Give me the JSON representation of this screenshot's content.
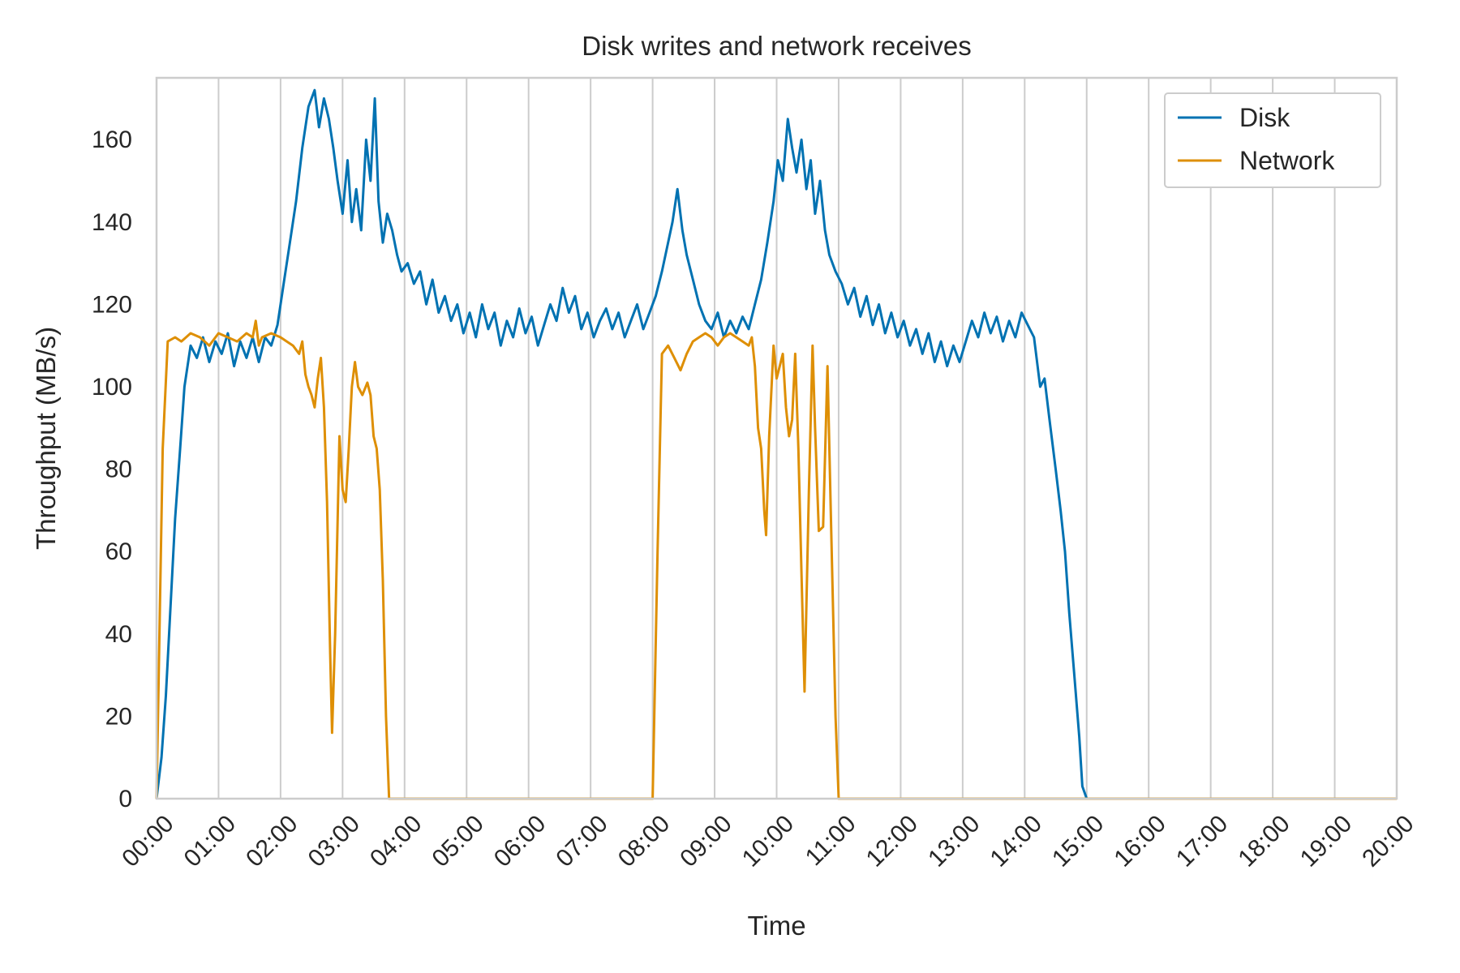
{
  "chart_data": {
    "type": "line",
    "title": "Disk writes and network receives",
    "xlabel": "Time",
    "ylabel": "Throughput (MB/s)",
    "xlim": [
      "00:00",
      "20:00"
    ],
    "ylim": [
      0,
      175
    ],
    "x_ticks": [
      "00:00",
      "01:00",
      "02:00",
      "03:00",
      "04:00",
      "05:00",
      "06:00",
      "07:00",
      "08:00",
      "09:00",
      "10:00",
      "11:00",
      "12:00",
      "13:00",
      "14:00",
      "15:00",
      "16:00",
      "17:00",
      "18:00",
      "19:00",
      "20:00"
    ],
    "y_ticks": [
      0,
      20,
      40,
      60,
      80,
      100,
      120,
      140,
      160
    ],
    "grid": "vertical",
    "legend": {
      "placement": "top-right"
    },
    "x_unit": "hours",
    "series": [
      {
        "name": "Disk",
        "color": "#0072B2",
        "points": [
          [
            0.0,
            0
          ],
          [
            0.08,
            10
          ],
          [
            0.15,
            25
          ],
          [
            0.22,
            45
          ],
          [
            0.3,
            68
          ],
          [
            0.38,
            85
          ],
          [
            0.45,
            100
          ],
          [
            0.55,
            110
          ],
          [
            0.65,
            107
          ],
          [
            0.75,
            112
          ],
          [
            0.85,
            106
          ],
          [
            0.95,
            111
          ],
          [
            1.05,
            108
          ],
          [
            1.15,
            113
          ],
          [
            1.25,
            105
          ],
          [
            1.35,
            111
          ],
          [
            1.45,
            107
          ],
          [
            1.55,
            112
          ],
          [
            1.65,
            106
          ],
          [
            1.75,
            112
          ],
          [
            1.85,
            110
          ],
          [
            1.95,
            115
          ],
          [
            2.05,
            125
          ],
          [
            2.15,
            135
          ],
          [
            2.25,
            145
          ],
          [
            2.35,
            158
          ],
          [
            2.45,
            168
          ],
          [
            2.55,
            172
          ],
          [
            2.62,
            163
          ],
          [
            2.7,
            170
          ],
          [
            2.78,
            165
          ],
          [
            2.85,
            158
          ],
          [
            2.92,
            150
          ],
          [
            3.0,
            142
          ],
          [
            3.08,
            155
          ],
          [
            3.15,
            140
          ],
          [
            3.22,
            148
          ],
          [
            3.3,
            138
          ],
          [
            3.38,
            160
          ],
          [
            3.45,
            150
          ],
          [
            3.52,
            170
          ],
          [
            3.58,
            145
          ],
          [
            3.65,
            135
          ],
          [
            3.72,
            142
          ],
          [
            3.8,
            138
          ],
          [
            3.88,
            132
          ],
          [
            3.95,
            128
          ],
          [
            4.05,
            130
          ],
          [
            4.15,
            125
          ],
          [
            4.25,
            128
          ],
          [
            4.35,
            120
          ],
          [
            4.45,
            126
          ],
          [
            4.55,
            118
          ],
          [
            4.65,
            122
          ],
          [
            4.75,
            116
          ],
          [
            4.85,
            120
          ],
          [
            4.95,
            113
          ],
          [
            5.05,
            118
          ],
          [
            5.15,
            112
          ],
          [
            5.25,
            120
          ],
          [
            5.35,
            114
          ],
          [
            5.45,
            118
          ],
          [
            5.55,
            110
          ],
          [
            5.65,
            116
          ],
          [
            5.75,
            112
          ],
          [
            5.85,
            119
          ],
          [
            5.95,
            113
          ],
          [
            6.05,
            117
          ],
          [
            6.15,
            110
          ],
          [
            6.25,
            115
          ],
          [
            6.35,
            120
          ],
          [
            6.45,
            116
          ],
          [
            6.55,
            124
          ],
          [
            6.65,
            118
          ],
          [
            6.75,
            122
          ],
          [
            6.85,
            114
          ],
          [
            6.95,
            118
          ],
          [
            7.05,
            112
          ],
          [
            7.15,
            116
          ],
          [
            7.25,
            119
          ],
          [
            7.35,
            114
          ],
          [
            7.45,
            118
          ],
          [
            7.55,
            112
          ],
          [
            7.65,
            116
          ],
          [
            7.75,
            120
          ],
          [
            7.85,
            114
          ],
          [
            7.95,
            118
          ],
          [
            8.05,
            122
          ],
          [
            8.15,
            128
          ],
          [
            8.25,
            135
          ],
          [
            8.32,
            140
          ],
          [
            8.4,
            148
          ],
          [
            8.48,
            138
          ],
          [
            8.55,
            132
          ],
          [
            8.65,
            126
          ],
          [
            8.75,
            120
          ],
          [
            8.85,
            116
          ],
          [
            8.95,
            114
          ],
          [
            9.05,
            118
          ],
          [
            9.15,
            112
          ],
          [
            9.25,
            116
          ],
          [
            9.35,
            113
          ],
          [
            9.45,
            117
          ],
          [
            9.55,
            114
          ],
          [
            9.65,
            120
          ],
          [
            9.75,
            126
          ],
          [
            9.85,
            135
          ],
          [
            9.95,
            145
          ],
          [
            10.02,
            155
          ],
          [
            10.1,
            150
          ],
          [
            10.18,
            165
          ],
          [
            10.25,
            158
          ],
          [
            10.32,
            152
          ],
          [
            10.4,
            160
          ],
          [
            10.48,
            148
          ],
          [
            10.55,
            155
          ],
          [
            10.62,
            142
          ],
          [
            10.7,
            150
          ],
          [
            10.78,
            138
          ],
          [
            10.85,
            132
          ],
          [
            10.95,
            128
          ],
          [
            11.05,
            125
          ],
          [
            11.15,
            120
          ],
          [
            11.25,
            124
          ],
          [
            11.35,
            117
          ],
          [
            11.45,
            122
          ],
          [
            11.55,
            115
          ],
          [
            11.65,
            120
          ],
          [
            11.75,
            113
          ],
          [
            11.85,
            118
          ],
          [
            11.95,
            112
          ],
          [
            12.05,
            116
          ],
          [
            12.15,
            110
          ],
          [
            12.25,
            114
          ],
          [
            12.35,
            108
          ],
          [
            12.45,
            113
          ],
          [
            12.55,
            106
          ],
          [
            12.65,
            111
          ],
          [
            12.75,
            105
          ],
          [
            12.85,
            110
          ],
          [
            12.95,
            106
          ],
          [
            13.05,
            111
          ],
          [
            13.15,
            116
          ],
          [
            13.25,
            112
          ],
          [
            13.35,
            118
          ],
          [
            13.45,
            113
          ],
          [
            13.55,
            117
          ],
          [
            13.65,
            111
          ],
          [
            13.75,
            116
          ],
          [
            13.85,
            112
          ],
          [
            13.95,
            118
          ],
          [
            14.05,
            115
          ],
          [
            14.15,
            112
          ],
          [
            14.25,
            100
          ],
          [
            14.32,
            102
          ],
          [
            14.4,
            92
          ],
          [
            14.5,
            80
          ],
          [
            14.58,
            70
          ],
          [
            14.65,
            60
          ],
          [
            14.72,
            45
          ],
          [
            14.8,
            30
          ],
          [
            14.88,
            15
          ],
          [
            14.93,
            3
          ],
          [
            15.0,
            0
          ],
          [
            20.0,
            0
          ]
        ]
      },
      {
        "name": "Network",
        "color": "#DE8F05",
        "points": [
          [
            0.0,
            0
          ],
          [
            0.1,
            85
          ],
          [
            0.18,
            111
          ],
          [
            0.3,
            112
          ],
          [
            0.4,
            111
          ],
          [
            0.55,
            113
          ],
          [
            0.7,
            112
          ],
          [
            0.85,
            110
          ],
          [
            1.0,
            113
          ],
          [
            1.15,
            112
          ],
          [
            1.3,
            111
          ],
          [
            1.45,
            113
          ],
          [
            1.55,
            112
          ],
          [
            1.6,
            116
          ],
          [
            1.65,
            110
          ],
          [
            1.7,
            112
          ],
          [
            1.85,
            113
          ],
          [
            2.0,
            112
          ],
          [
            2.1,
            111
          ],
          [
            2.2,
            110
          ],
          [
            2.3,
            108
          ],
          [
            2.35,
            111
          ],
          [
            2.4,
            103
          ],
          [
            2.45,
            100
          ],
          [
            2.5,
            98
          ],
          [
            2.55,
            95
          ],
          [
            2.6,
            102
          ],
          [
            2.65,
            107
          ],
          [
            2.7,
            95
          ],
          [
            2.75,
            72
          ],
          [
            2.8,
            35
          ],
          [
            2.83,
            16
          ],
          [
            2.88,
            40
          ],
          [
            2.95,
            88
          ],
          [
            3.0,
            75
          ],
          [
            3.05,
            72
          ],
          [
            3.1,
            85
          ],
          [
            3.15,
            100
          ],
          [
            3.2,
            106
          ],
          [
            3.25,
            100
          ],
          [
            3.32,
            98
          ],
          [
            3.4,
            101
          ],
          [
            3.45,
            98
          ],
          [
            3.5,
            88
          ],
          [
            3.55,
            85
          ],
          [
            3.6,
            75
          ],
          [
            3.65,
            53
          ],
          [
            3.7,
            20
          ],
          [
            3.75,
            0
          ],
          [
            8.0,
            0
          ],
          [
            8.08,
            60
          ],
          [
            8.15,
            108
          ],
          [
            8.25,
            110
          ],
          [
            8.35,
            107
          ],
          [
            8.45,
            104
          ],
          [
            8.55,
            108
          ],
          [
            8.65,
            111
          ],
          [
            8.75,
            112
          ],
          [
            8.85,
            113
          ],
          [
            8.95,
            112
          ],
          [
            9.05,
            110
          ],
          [
            9.15,
            112
          ],
          [
            9.25,
            113
          ],
          [
            9.35,
            112
          ],
          [
            9.45,
            111
          ],
          [
            9.55,
            110
          ],
          [
            9.6,
            112
          ],
          [
            9.65,
            105
          ],
          [
            9.7,
            90
          ],
          [
            9.75,
            85
          ],
          [
            9.8,
            70
          ],
          [
            9.83,
            64
          ],
          [
            9.88,
            88
          ],
          [
            9.95,
            110
          ],
          [
            10.0,
            102
          ],
          [
            10.05,
            105
          ],
          [
            10.1,
            108
          ],
          [
            10.15,
            95
          ],
          [
            10.2,
            88
          ],
          [
            10.25,
            92
          ],
          [
            10.3,
            108
          ],
          [
            10.35,
            85
          ],
          [
            10.4,
            55
          ],
          [
            10.45,
            26
          ],
          [
            10.52,
            75
          ],
          [
            10.58,
            110
          ],
          [
            10.62,
            90
          ],
          [
            10.68,
            65
          ],
          [
            10.75,
            66
          ],
          [
            10.82,
            105
          ],
          [
            10.88,
            65
          ],
          [
            10.95,
            20
          ],
          [
            11.0,
            0
          ],
          [
            20.0,
            0
          ]
        ]
      }
    ]
  }
}
